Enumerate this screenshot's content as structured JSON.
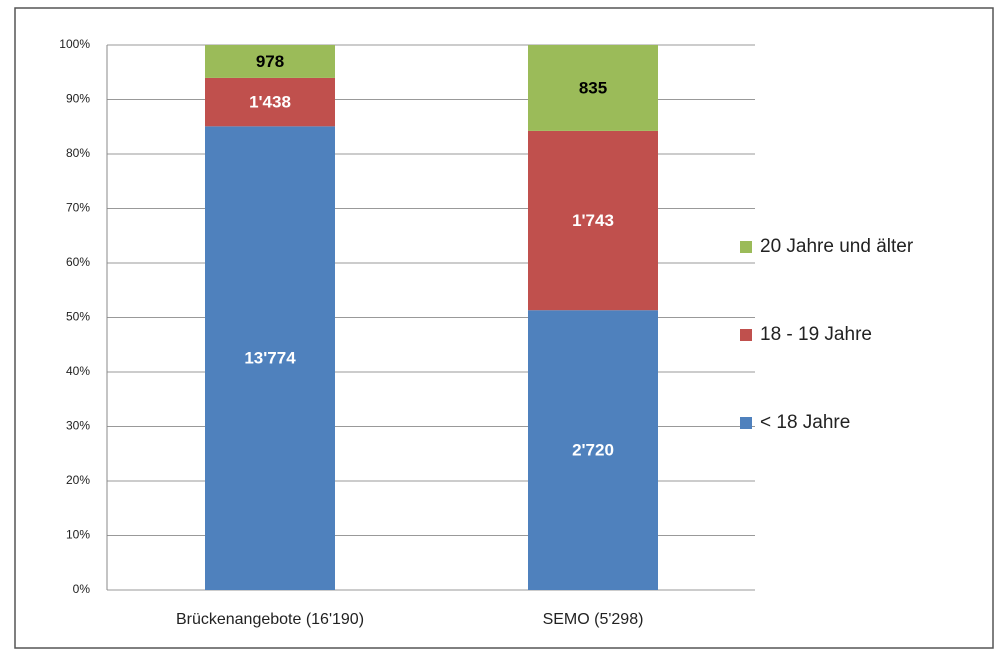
{
  "chart_data": {
    "type": "bar",
    "stacking": "percent",
    "categories": [
      "Brückenangebote (16'190)",
      "SEMO (5'298)"
    ],
    "series": [
      {
        "name": "< 18 Jahre",
        "color": "#4f81bd",
        "label_color": "#ffffff",
        "values": [
          13774,
          2720
        ],
        "value_labels": [
          "13'774",
          "2'720"
        ]
      },
      {
        "name": "18 - 19 Jahre",
        "color": "#c0504d",
        "label_color": "#ffffff",
        "values": [
          1438,
          1743
        ],
        "value_labels": [
          "1'438",
          "1'743"
        ]
      },
      {
        "name": "20 Jahre und älter",
        "color": "#9bbb59",
        "label_color": "#000000",
        "values": [
          978,
          835
        ],
        "value_labels": [
          "978",
          "835"
        ]
      }
    ],
    "ylim": [
      0,
      100
    ],
    "yticks": [
      {
        "value": 0,
        "label": "0%"
      },
      {
        "value": 10,
        "label": "10%"
      },
      {
        "value": 20,
        "label": "20%"
      },
      {
        "value": 30,
        "label": "30%"
      },
      {
        "value": 40,
        "label": "40%"
      },
      {
        "value": 50,
        "label": "50%"
      },
      {
        "value": 60,
        "label": "60%"
      },
      {
        "value": 70,
        "label": "70%"
      },
      {
        "value": 80,
        "label": "80%"
      },
      {
        "value": 90,
        "label": "90%"
      },
      {
        "value": 100,
        "label": "100%"
      }
    ],
    "grid": true,
    "legend": "right"
  }
}
